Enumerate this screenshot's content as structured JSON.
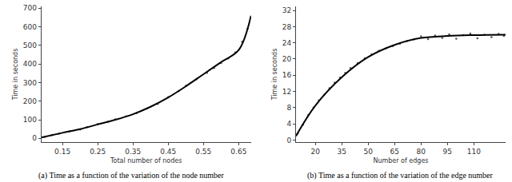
{
  "chart_data": [
    {
      "type": "scatter",
      "caption": "(a) Time as a function of the variation of the node number",
      "x_label": "Total number of nodes",
      "y_label": "Time in seconds",
      "xlim": [
        0.09,
        0.685
      ],
      "xticks": [
        0.15,
        0.25,
        0.35,
        0.45,
        0.55,
        0.65
      ],
      "ylim": [
        -20,
        710
      ],
      "yticks": [
        0,
        100,
        200,
        300,
        400,
        500,
        600,
        700
      ],
      "grid": false,
      "series": [
        {
          "type": "scatter",
          "marker": "circle",
          "color": "#555555",
          "x": [
            0.1,
            0.12,
            0.14,
            0.17,
            0.2,
            0.22,
            0.25,
            0.28,
            0.3,
            0.33,
            0.36,
            0.39,
            0.42,
            0.45,
            0.48,
            0.5,
            0.53,
            0.56,
            0.58,
            0.6,
            0.62,
            0.64,
            0.66,
            0.675,
            0.685
          ],
          "values": [
            8,
            18,
            25,
            38,
            48,
            60,
            78,
            90,
            102,
            118,
            136,
            160,
            185,
            222,
            255,
            283,
            318,
            352,
            378,
            405,
            430,
            462,
            520,
            590,
            650
          ]
        },
        {
          "type": "line",
          "line_style": "solid",
          "color": "#000000",
          "x": [
            0.09,
            0.15,
            0.2,
            0.25,
            0.3,
            0.35,
            0.4,
            0.45,
            0.5,
            0.55,
            0.6,
            0.65,
            0.685
          ],
          "values": [
            5,
            30,
            50,
            75,
            100,
            130,
            170,
            220,
            280,
            345,
            410,
            475,
            660
          ]
        }
      ]
    },
    {
      "type": "scatter",
      "caption": "(b) Time as a function of the variation of the edge number",
      "x_label": "Number of edges",
      "y_label": "Time in seconds",
      "xlim": [
        9,
        128
      ],
      "xticks": [
        20,
        35,
        50,
        65,
        80,
        95,
        110
      ],
      "ylim": [
        -0.5,
        33
      ],
      "yticks": [
        0,
        4,
        8,
        12,
        16,
        20,
        24,
        28,
        32
      ],
      "grid": false,
      "series": [
        {
          "type": "scatter",
          "marker": "circle",
          "color": "#555555",
          "x": [
            10,
            13,
            16,
            19,
            22,
            25,
            28,
            31,
            34,
            37,
            40,
            44,
            48,
            52,
            56,
            60,
            64,
            68,
            72,
            76,
            80,
            84,
            88,
            92,
            96,
            100,
            104,
            108,
            112,
            116,
            120,
            124,
            127
          ],
          "values": [
            1.6,
            3.8,
            6.2,
            8.0,
            9.8,
            11.2,
            12.8,
            14.2,
            15.4,
            16.6,
            17.8,
            19.0,
            20.2,
            21.2,
            22.0,
            22.6,
            23.2,
            23.8,
            24.5,
            24.8,
            25.6,
            24.9,
            25.8,
            25.2,
            26.1,
            25.0,
            25.9,
            26.3,
            25.1,
            26.0,
            25.4,
            26.2,
            25.7
          ]
        },
        {
          "type": "line",
          "line_style": "solid",
          "color": "#000000",
          "x": [
            9,
            20,
            35,
            50,
            65,
            80,
            95,
            110,
            128
          ],
          "values": [
            1,
            8.5,
            15.5,
            20.5,
            23.5,
            25.2,
            25.7,
            25.9,
            26
          ]
        }
      ]
    }
  ]
}
